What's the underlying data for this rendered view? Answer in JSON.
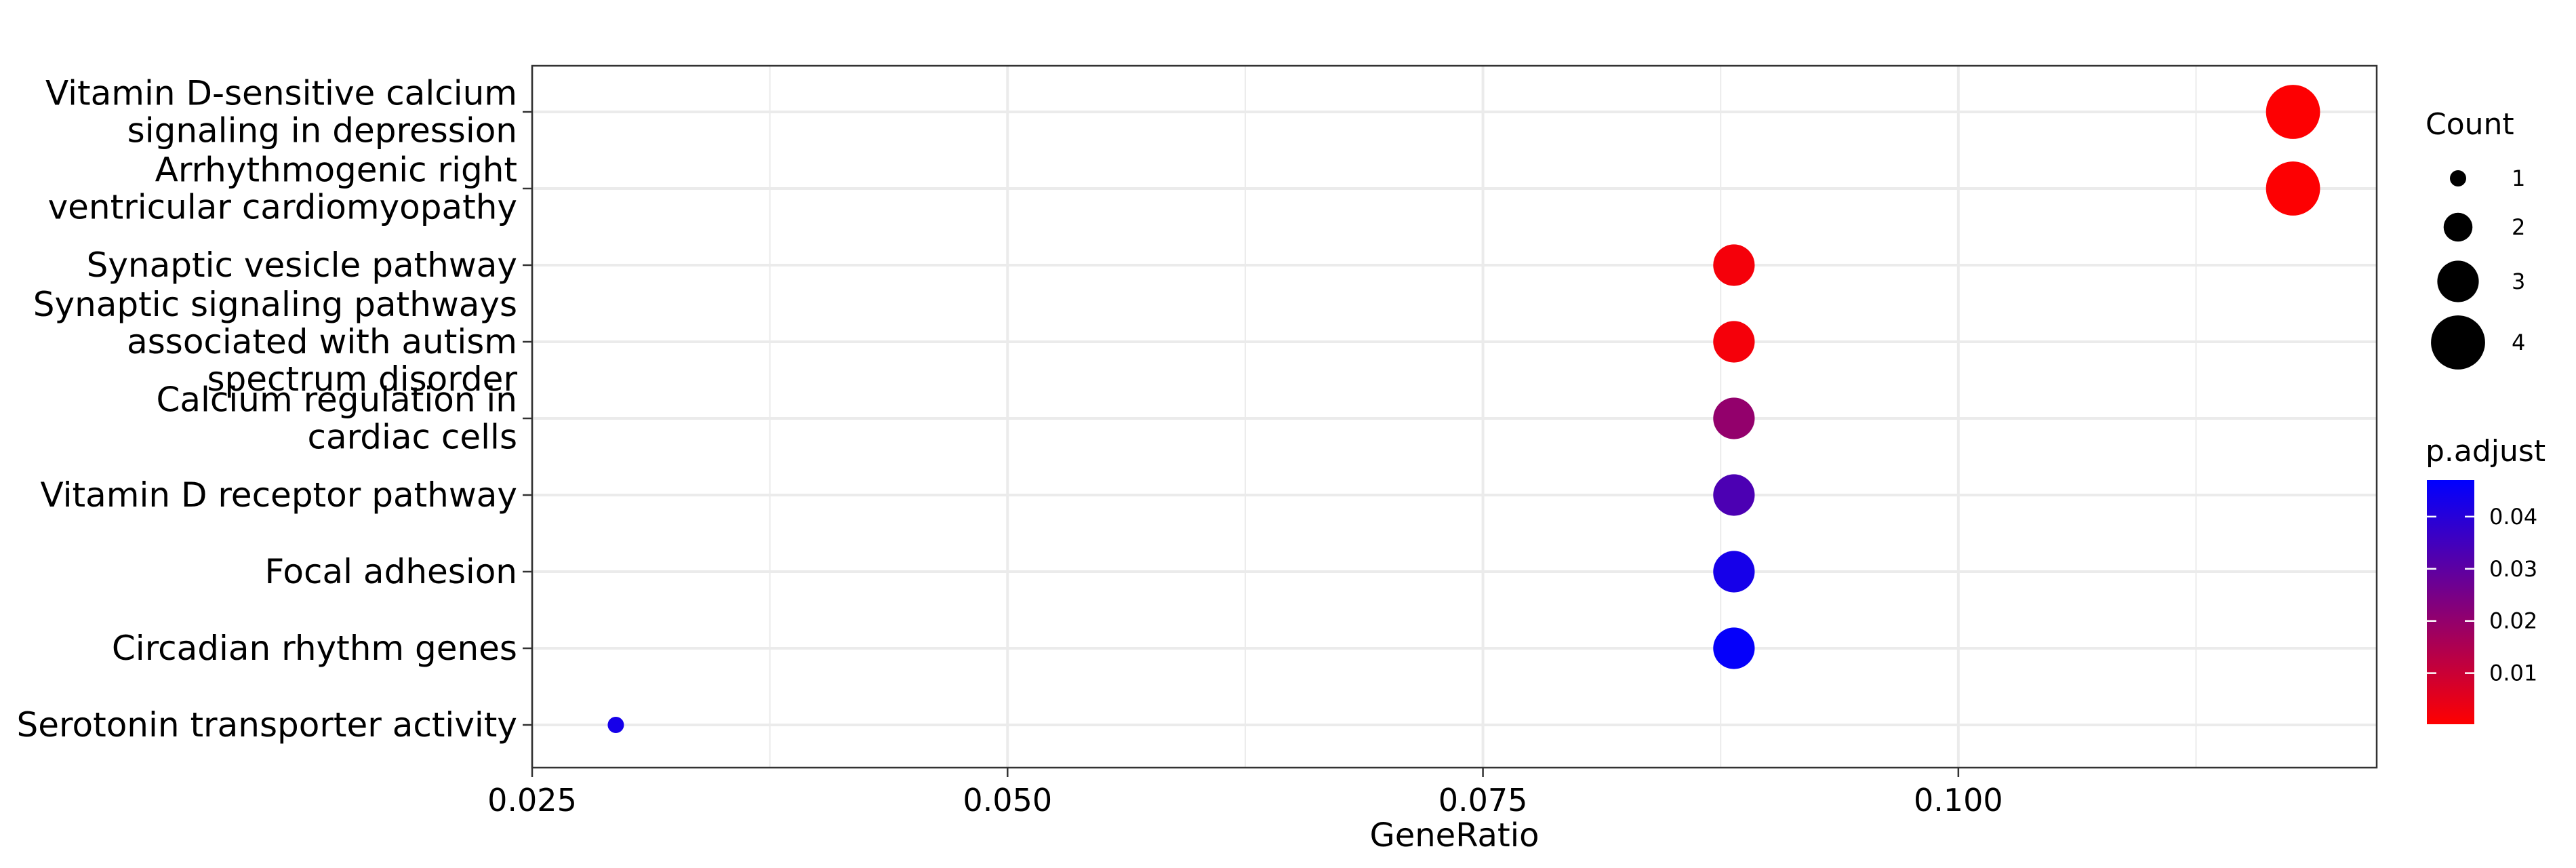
{
  "chart_data": {
    "type": "scatter",
    "title": "",
    "xlabel": "GeneRatio",
    "ylabel": "",
    "xlim": [
      0.025,
      0.122
    ],
    "xticks": [
      0.025,
      0.05,
      0.075,
      0.1
    ],
    "xtick_labels": [
      "0.025",
      "0.050",
      "0.075",
      "0.100"
    ],
    "grid": true,
    "legend_position": "right",
    "points": [
      {
        "label": "Vitamin D-sensitive calcium\nsignaling in depression",
        "x": 0.1176,
        "count": 4,
        "p_adjust": 0.0005
      },
      {
        "label": "Arrhythmogenic right\nventricular cardiomyopathy",
        "x": 0.1176,
        "count": 4,
        "p_adjust": 0.0005
      },
      {
        "label": "Synaptic vesicle pathway",
        "x": 0.0882,
        "count": 3,
        "p_adjust": 0.002
      },
      {
        "label": "Synaptic signaling pathways\nassociated with autism\nspectrum disorder",
        "x": 0.0882,
        "count": 3,
        "p_adjust": 0.002
      },
      {
        "label": "Calcium regulation in\ncardiac cells",
        "x": 0.0882,
        "count": 3,
        "p_adjust": 0.02
      },
      {
        "label": "Vitamin D receptor pathway",
        "x": 0.0882,
        "count": 3,
        "p_adjust": 0.033
      },
      {
        "label": "Focal adhesion",
        "x": 0.0882,
        "count": 3,
        "p_adjust": 0.043
      },
      {
        "label": "Circadian rhythm genes",
        "x": 0.0882,
        "count": 3,
        "p_adjust": 0.046
      },
      {
        "label": "Serotonin transporter activity",
        "x": 0.0294,
        "count": 1,
        "p_adjust": 0.043
      }
    ],
    "size_legend": {
      "title": "Count",
      "values": [
        1,
        2,
        3,
        4
      ],
      "labels": [
        "1",
        "2",
        "3",
        "4"
      ]
    },
    "color_legend": {
      "title": "p.adjust",
      "range": [
        0.0002,
        0.047
      ],
      "ticks": [
        0.01,
        0.02,
        0.03,
        0.04
      ],
      "tick_labels": [
        "0.01",
        "0.02",
        "0.03",
        "0.04"
      ],
      "low_color": "#FF0000",
      "high_color": "#0000FF"
    }
  }
}
